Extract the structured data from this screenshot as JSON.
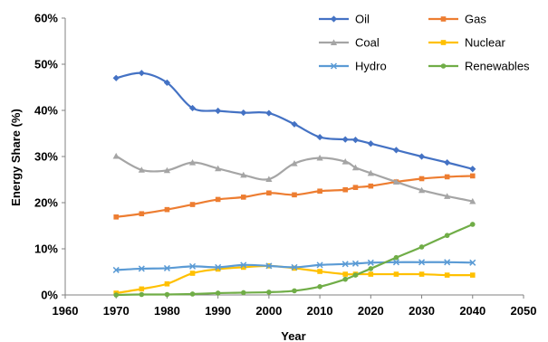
{
  "chart_data": {
    "type": "line",
    "title": "",
    "xlabel": "Year",
    "ylabel": "Energy Share (%)",
    "xlim": [
      1960,
      2050
    ],
    "ylim": [
      0,
      60
    ],
    "x_ticks": [
      1960,
      1970,
      1980,
      1990,
      2000,
      2010,
      2020,
      2030,
      2040,
      2050
    ],
    "y_ticks": [
      0,
      10,
      20,
      30,
      40,
      50,
      60
    ],
    "x_tick_labels": [
      "1960",
      "1970",
      "1980",
      "1990",
      "2000",
      "2010",
      "2020",
      "2030",
      "2040",
      "2050"
    ],
    "y_tick_labels": [
      "0%",
      "10%",
      "20%",
      "30%",
      "40%",
      "50%",
      "60%"
    ],
    "grid": false,
    "legend_position": "top-right",
    "series": [
      {
        "name": "Oil",
        "color": "#4472C4",
        "marker": "diamond",
        "x": [
          1970,
          1975,
          1980,
          1985,
          1990,
          1995,
          2000,
          2005,
          2010,
          2015,
          2017,
          2020,
          2025,
          2030,
          2035,
          2040
        ],
        "y": [
          47.0,
          48.1,
          46.0,
          40.5,
          39.9,
          39.5,
          39.4,
          37.0,
          34.2,
          33.7,
          33.6,
          32.8,
          31.4,
          30.0,
          28.7,
          27.3
        ]
      },
      {
        "name": "Gas",
        "color": "#ED7D31",
        "marker": "square",
        "x": [
          1970,
          1975,
          1980,
          1985,
          1990,
          1995,
          2000,
          2005,
          2010,
          2015,
          2017,
          2020,
          2025,
          2030,
          2035,
          2040
        ],
        "y": [
          16.9,
          17.6,
          18.5,
          19.6,
          20.7,
          21.2,
          22.1,
          21.7,
          22.5,
          22.8,
          23.3,
          23.6,
          24.5,
          25.2,
          25.6,
          25.8
        ]
      },
      {
        "name": "Coal",
        "color": "#A5A5A5",
        "marker": "triangle",
        "x": [
          1970,
          1975,
          1980,
          1985,
          1990,
          1995,
          2000,
          2005,
          2010,
          2015,
          2017,
          2020,
          2025,
          2030,
          2035,
          2040
        ],
        "y": [
          30.1,
          27.1,
          27.0,
          28.7,
          27.4,
          26.0,
          25.1,
          28.5,
          29.7,
          28.9,
          27.6,
          26.4,
          24.5,
          22.7,
          21.4,
          20.3
        ]
      },
      {
        "name": "Nuclear",
        "color": "#FFC000",
        "marker": "square",
        "x": [
          1970,
          1975,
          1980,
          1985,
          1990,
          1995,
          2000,
          2005,
          2010,
          2015,
          2017,
          2020,
          2025,
          2030,
          2035,
          2040
        ],
        "y": [
          0.4,
          1.3,
          2.4,
          4.7,
          5.6,
          6.0,
          6.3,
          5.8,
          5.1,
          4.5,
          4.5,
          4.5,
          4.5,
          4.5,
          4.3,
          4.3
        ]
      },
      {
        "name": "Hydro",
        "color": "#5B9BD5",
        "marker": "x",
        "x": [
          1970,
          1975,
          1980,
          1985,
          1990,
          1995,
          2000,
          2005,
          2010,
          2015,
          2017,
          2020,
          2025,
          2030,
          2035,
          2040
        ],
        "y": [
          5.4,
          5.7,
          5.8,
          6.2,
          6.0,
          6.5,
          6.3,
          6.0,
          6.5,
          6.7,
          6.8,
          7.0,
          7.1,
          7.1,
          7.1,
          7.0
        ]
      },
      {
        "name": "Renewables",
        "color": "#70AD47",
        "marker": "circle",
        "x": [
          1970,
          1975,
          1980,
          1985,
          1990,
          1995,
          2000,
          2005,
          2010,
          2015,
          2017,
          2020,
          2025,
          2030,
          2035,
          2040
        ],
        "y": [
          0.0,
          0.1,
          0.1,
          0.2,
          0.4,
          0.5,
          0.6,
          0.9,
          1.8,
          3.4,
          4.3,
          5.7,
          8.1,
          10.4,
          12.9,
          15.3
        ]
      }
    ]
  }
}
